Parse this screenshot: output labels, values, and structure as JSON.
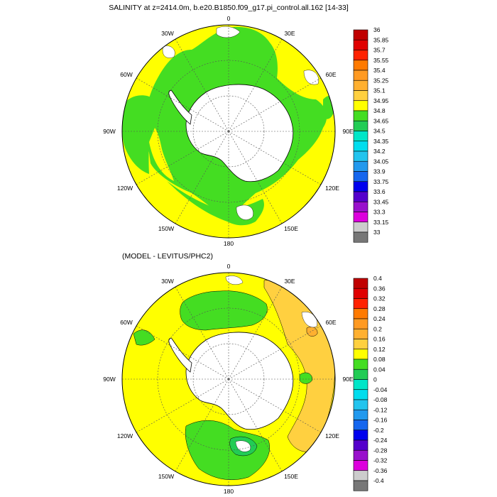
{
  "chart_data": [
    {
      "type": "polar-map",
      "title": "SALINITY at z=2414.0m, b.e20.B1850.f09_g17.pi_control.all.162 [14-33]",
      "longitude_labels": [
        "0",
        "30E",
        "60E",
        "90E",
        "120E",
        "150E",
        "180",
        "150W",
        "120W",
        "90W",
        "60W",
        "30W"
      ],
      "colorbar": {
        "labels": [
          "36",
          "35.85",
          "35.7",
          "35.55",
          "35.4",
          "35.25",
          "35.1",
          "34.95",
          "34.8",
          "34.65",
          "34.5",
          "34.35",
          "34.2",
          "34.05",
          "33.9",
          "33.75",
          "33.6",
          "33.45",
          "33.3",
          "33.15",
          "33"
        ],
        "colors": [
          "#c00000",
          "#e00000",
          "#ff2200",
          "#ff7a00",
          "#ff9a22",
          "#ffb030",
          "#ffd040",
          "#ffff00",
          "#44dd22",
          "#22cc55",
          "#00e6c8",
          "#00ddee",
          "#22c4ee",
          "#2299ee",
          "#1566ee",
          "#0000ee",
          "#5500cc",
          "#9911cc",
          "#dd00dd",
          "#cccccc",
          "#777777"
        ]
      },
      "dominant_regions": [
        {
          "value_range": "34.8-34.95",
          "color": "#44dd22",
          "where": "inner ring around Antarctica"
        },
        {
          "value_range": "34.95-35.1",
          "color": "#ffff00",
          "where": "outer ring and northern basins"
        }
      ]
    },
    {
      "type": "polar-map",
      "title": "(MODEL - LEVITUS/PHC2)",
      "longitude_labels": [
        "0",
        "30E",
        "60E",
        "90E",
        "120E",
        "150E",
        "180",
        "150W",
        "120W",
        "90W",
        "60W",
        "30W"
      ],
      "colorbar": {
        "labels": [
          "0.4",
          "0.36",
          "0.32",
          "0.28",
          "0.24",
          "0.2",
          "0.16",
          "0.12",
          "0.08",
          "0.04",
          "0",
          "-0.04",
          "-0.08",
          "-0.12",
          "-0.16",
          "-0.2",
          "-0.24",
          "-0.28",
          "-0.32",
          "-0.36",
          "-0.4"
        ],
        "colors": [
          "#c00000",
          "#e00000",
          "#ff2200",
          "#ff7a00",
          "#ff9a22",
          "#ffb030",
          "#ffd040",
          "#ffff00",
          "#44dd22",
          "#22cc55",
          "#00e6c8",
          "#00ddee",
          "#22c4ee",
          "#2299ee",
          "#1566ee",
          "#0000ee",
          "#5500cc",
          "#9911cc",
          "#dd00dd",
          "#cccccc",
          "#777777"
        ]
      },
      "dominant_regions": [
        {
          "value_range": "0.08-0.12",
          "color": "#ffff00",
          "where": "most of the ocean"
        },
        {
          "value_range": "0.04-0.08",
          "color": "#44dd22",
          "where": "patches near Antarctica and mid-latitudes"
        },
        {
          "value_range": "0.12-0.16",
          "color": "#ffd040",
          "where": "Indian Ocean sector (30E-120E)"
        },
        {
          "value_range": "0-0.04",
          "color": "#22cc55",
          "where": "small patch near 180"
        }
      ]
    }
  ]
}
